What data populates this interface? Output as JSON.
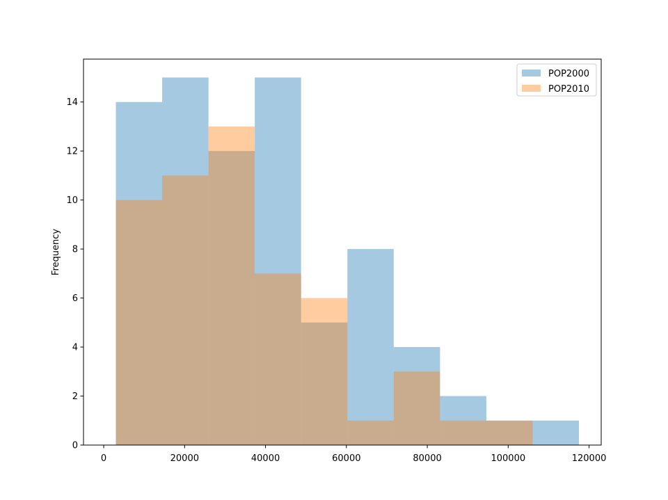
{
  "chart_data": {
    "type": "bar",
    "subtype": "overlaid histogram",
    "title": "",
    "xlabel": "",
    "ylabel": "Frequency",
    "xlim": [
      -5000,
      123000
    ],
    "ylim": [
      0,
      15.75
    ],
    "xticks": [
      0,
      20000,
      40000,
      60000,
      80000,
      100000,
      120000
    ],
    "yticks": [
      0,
      2,
      4,
      6,
      8,
      10,
      12,
      14
    ],
    "grid": false,
    "legend_position": "top-right",
    "bin_edges": [
      3000,
      14450,
      25900,
      37350,
      48800,
      60250,
      71700,
      83150,
      94600,
      106050,
      117500
    ],
    "series": [
      {
        "name": "POP2000",
        "color": "#1f77b4",
        "opacity": 0.4,
        "values": [
          14,
          15,
          12,
          15,
          5,
          8,
          4,
          2,
          1,
          1
        ]
      },
      {
        "name": "POP2010",
        "color": "#ff7f0e",
        "opacity": 0.4,
        "values": [
          10,
          11,
          13,
          7,
          6,
          1,
          3,
          1,
          1,
          0
        ]
      }
    ]
  }
}
